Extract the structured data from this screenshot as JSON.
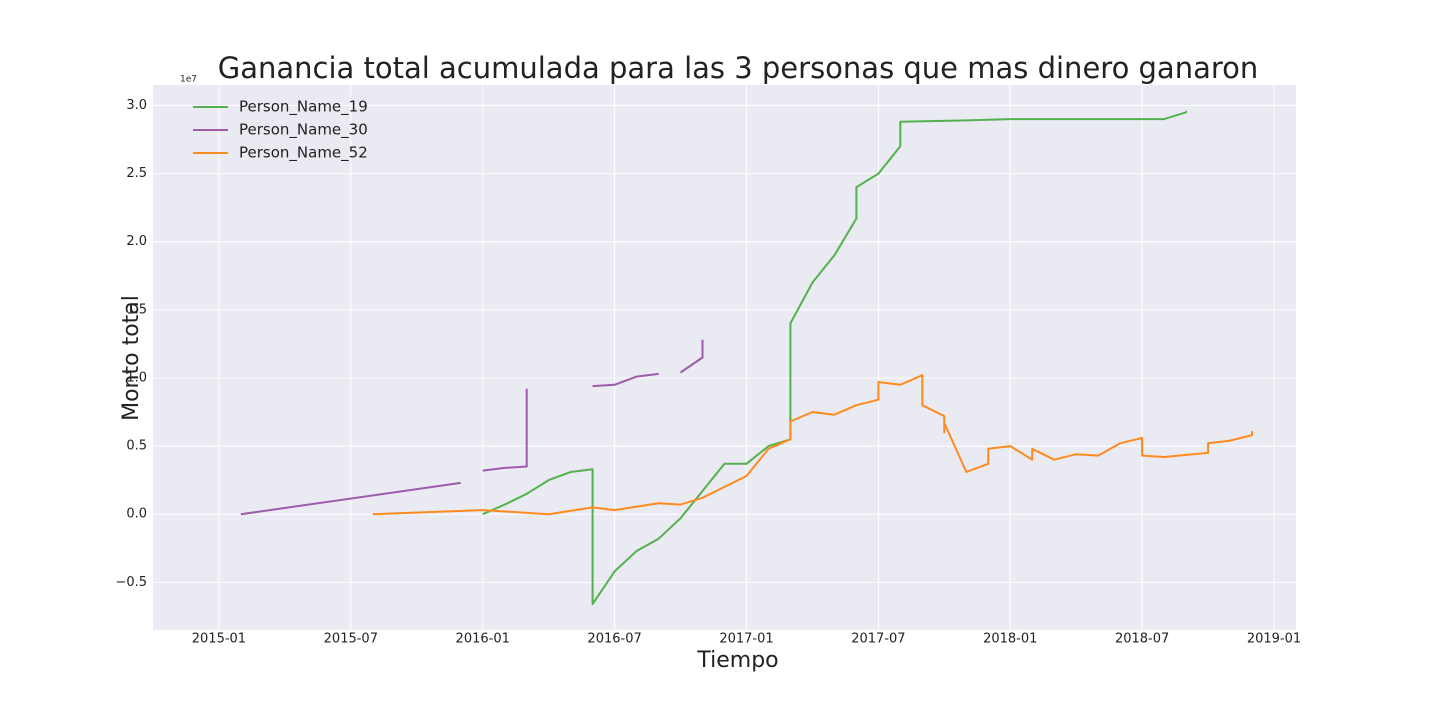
{
  "chart_data": {
    "type": "line",
    "title": "Ganancia total acumulada para las 3 personas que mas dinero ganaron",
    "x_label": "Tiempo",
    "y_label": "Monto total",
    "y_offset_label": "1e7",
    "xlim": [
      "2014-10",
      "2019-02"
    ],
    "xticks": [
      "2015-01",
      "2015-07",
      "2016-01",
      "2016-07",
      "2017-01",
      "2017-07",
      "2018-01",
      "2018-07",
      "2019-01"
    ],
    "ylim": [
      -0.85,
      3.15
    ],
    "yticks": [
      {
        "value": -0.5,
        "label": "−0.5"
      },
      {
        "value": 0,
        "label": "0.0"
      },
      0.5,
      {
        "value": 1,
        "label": "1.0"
      },
      1.5,
      {
        "value": 2,
        "label": "2.0"
      },
      2.5,
      {
        "value": 3,
        "label": "3.0"
      }
    ],
    "grid": true,
    "legend": "upper left",
    "series": [
      {
        "name": "Person_Name_19",
        "color": "#55b04f",
        "x": [
          "2016-01",
          "2016-02",
          "2016-03",
          "2016-04",
          "2016-05",
          "2016-06",
          "2016-06",
          "2016-07",
          "2016-08",
          "2016-09",
          "2016-10",
          "2016-11",
          "2016-12",
          "2017-01",
          "2017-02",
          "2017-03",
          "2017-03",
          "2017-04",
          "2017-05",
          "2017-06",
          "2017-06",
          "2017-07",
          "2017-08",
          "2017-08",
          "2017-11",
          "2018-01",
          "2018-08",
          "2018-09",
          "2018-09"
        ],
        "values": [
          0.0,
          0.07,
          0.15,
          0.25,
          0.31,
          0.33,
          -0.66,
          -0.42,
          -0.27,
          -0.18,
          -0.03,
          0.17,
          0.37,
          0.37,
          0.5,
          0.55,
          1.4,
          1.7,
          1.9,
          2.17,
          2.4,
          2.5,
          2.7,
          2.88,
          2.89,
          2.9,
          2.9,
          2.95,
          2.96
        ]
      },
      {
        "name": "Person_Name_30",
        "color": "#9e5aab",
        "x": [
          "2015-02",
          "2015-12",
          null,
          "2016-01",
          "2016-02",
          "2016-03",
          "2016-03",
          null,
          "2016-04",
          null,
          "2016-06",
          "2016-07",
          "2016-08",
          "2016-09",
          null,
          "2016-10",
          "2016-11",
          "2016-11",
          "2016-11"
        ],
        "values": [
          0.0,
          0.23,
          null,
          0.32,
          0.34,
          0.35,
          0.92,
          null,
          0.93,
          null,
          0.94,
          0.95,
          1.01,
          1.03,
          null,
          1.04,
          1.15,
          1.25,
          1.28
        ]
      },
      {
        "name": "Person_Name_52",
        "color": "#ff8a1f",
        "x": [
          "2015-08",
          "2016-01",
          "2016-04",
          "2016-06",
          "2016-07",
          "2016-09",
          "2016-10",
          "2016-11",
          "2016-12",
          "2017-01",
          "2017-02",
          "2017-03",
          "2017-03",
          "2017-04",
          "2017-05",
          "2017-06",
          "2017-07",
          "2017-07",
          "2017-08",
          "2017-09",
          "2017-09",
          "2017-10",
          "2017-10",
          "2017-10",
          "2017-11",
          "2017-12",
          "2017-12",
          "2018-01",
          "2018-02",
          "2018-02",
          "2018-03",
          "2018-04",
          "2018-05",
          "2018-06",
          "2018-07",
          "2018-07",
          "2018-08",
          "2018-10",
          "2018-10",
          "2018-11",
          "2018-12",
          "2018-12"
        ],
        "values": [
          0.0,
          0.03,
          0.0,
          0.05,
          0.03,
          0.08,
          0.07,
          0.12,
          0.2,
          0.28,
          0.48,
          0.55,
          0.68,
          0.75,
          0.73,
          0.8,
          0.84,
          0.97,
          0.95,
          1.02,
          0.8,
          0.72,
          0.6,
          0.67,
          0.31,
          0.37,
          0.48,
          0.5,
          0.4,
          0.48,
          0.4,
          0.44,
          0.43,
          0.52,
          0.56,
          0.43,
          0.42,
          0.45,
          0.52,
          0.54,
          0.58,
          0.61
        ]
      }
    ]
  }
}
